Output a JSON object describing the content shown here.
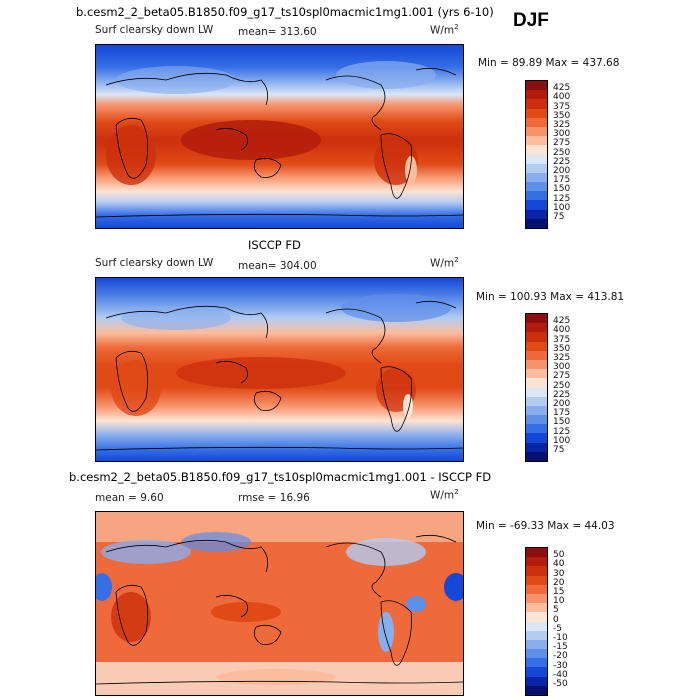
{
  "season": "DJF",
  "panels": [
    {
      "title": "b.cesm2_2_beta05.B1850.f09_g17_ts10spl0macmic1mg1.001 (yrs 6-10)",
      "variable": "Surf clearsky down LW",
      "stat": "mean= 313.60",
      "units": "W/m",
      "units_sup": "2",
      "minmax": "Min =  89.89 Max = 437.68",
      "colorbar_labels": [
        "425",
        "400",
        "375",
        "350",
        "325",
        "300",
        "275",
        "250",
        "225",
        "200",
        "175",
        "150",
        "125",
        "100",
        "75"
      ]
    },
    {
      "title": "ISCCP FD",
      "variable": "Surf clearsky down LW",
      "stat": "mean= 304.00",
      "units": "W/m",
      "units_sup": "2",
      "minmax": "Min = 100.93 Max = 413.81",
      "colorbar_labels": [
        "425",
        "400",
        "375",
        "350",
        "325",
        "300",
        "275",
        "250",
        "225",
        "200",
        "175",
        "150",
        "125",
        "100",
        "75"
      ]
    },
    {
      "title": "b.cesm2_2_beta05.B1850.f09_g17_ts10spl0macmic1mg1.001 - ISCCP FD",
      "stat_mean": "mean =    9.60",
      "stat_rmse": "rmse =  16.96",
      "units": "W/m",
      "units_sup": "2",
      "minmax": "Min = -69.33 Max =  44.03",
      "colorbar_labels": [
        "50",
        "40",
        "30",
        "20",
        "15",
        "10",
        "5",
        "0",
        "-5",
        "-10",
        "-15",
        "-20",
        "-30",
        "-40",
        "-50"
      ]
    }
  ],
  "colors": {
    "sequential": [
      "#8b0f0f",
      "#b31c0c",
      "#cc2f0d",
      "#e04a16",
      "#ee6a3a",
      "#f7936c",
      "#fbbd9e",
      "#fde3d3",
      "#dbe6f7",
      "#b3ccf2",
      "#89aeee",
      "#5e8fe9",
      "#356ee5",
      "#1447d8",
      "#0a24a8",
      "#06106e"
    ],
    "diverging": [
      "#8b0f0f",
      "#b31c0c",
      "#cc2f0d",
      "#e04a16",
      "#ee6a3a",
      "#f7936c",
      "#fbbd9e",
      "#fde3d3",
      "#dbe6f7",
      "#b3ccf2",
      "#89aeee",
      "#5e8fe9",
      "#356ee5",
      "#1447d8",
      "#0a24a8",
      "#06106e"
    ]
  }
}
